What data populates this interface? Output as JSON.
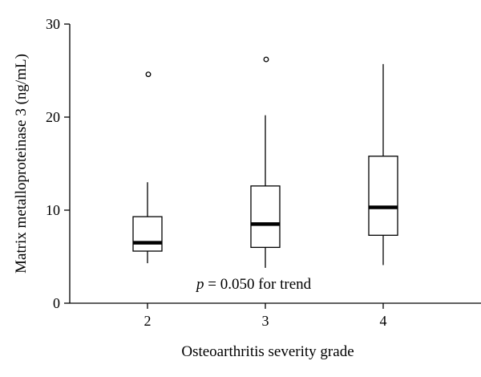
{
  "chart_data": {
    "type": "boxplot",
    "xlabel": "Osteoarthritis severity grade",
    "ylabel": "Matrix metalloproteinase 3 (ng/mL)",
    "ylim": [
      0,
      30
    ],
    "yticks": [
      "0",
      "10",
      "20",
      "30"
    ],
    "categories": [
      "2",
      "3",
      "4"
    ],
    "boxes": [
      {
        "category": "2",
        "whisker_low": 4.3,
        "q1": 5.6,
        "median": 6.5,
        "q3": 9.3,
        "whisker_high": 13.0,
        "outliers": [
          24.6
        ]
      },
      {
        "category": "3",
        "whisker_low": 3.8,
        "q1": 6.0,
        "median": 8.5,
        "q3": 12.6,
        "whisker_high": 20.2,
        "outliers": [
          26.2
        ]
      },
      {
        "category": "4",
        "whisker_low": 4.1,
        "q1": 7.3,
        "median": 10.3,
        "q3": 15.8,
        "whisker_high": 25.7,
        "outliers": []
      }
    ],
    "annotation": {
      "symbol": "p",
      "text": " = 0.050 for trend"
    },
    "grid": false,
    "legend": "none"
  }
}
